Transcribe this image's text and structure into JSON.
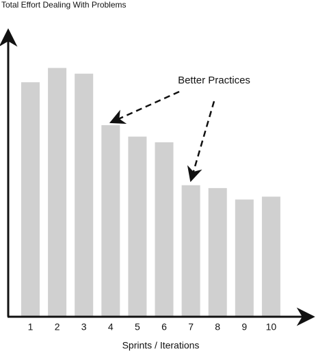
{
  "chart_data": {
    "type": "bar",
    "title": "Total Effort Dealing With Problems",
    "x_label": "Sprints / Iterations",
    "annotation": "Better Practices",
    "categories": [
      "1",
      "2",
      "3",
      "4",
      "5",
      "6",
      "7",
      "8",
      "9",
      "10"
    ],
    "values": [
      82,
      87,
      85,
      67,
      63,
      61,
      46,
      45,
      41,
      42
    ],
    "color": "#d0d0d0",
    "ylim": [
      0,
      100
    ]
  }
}
